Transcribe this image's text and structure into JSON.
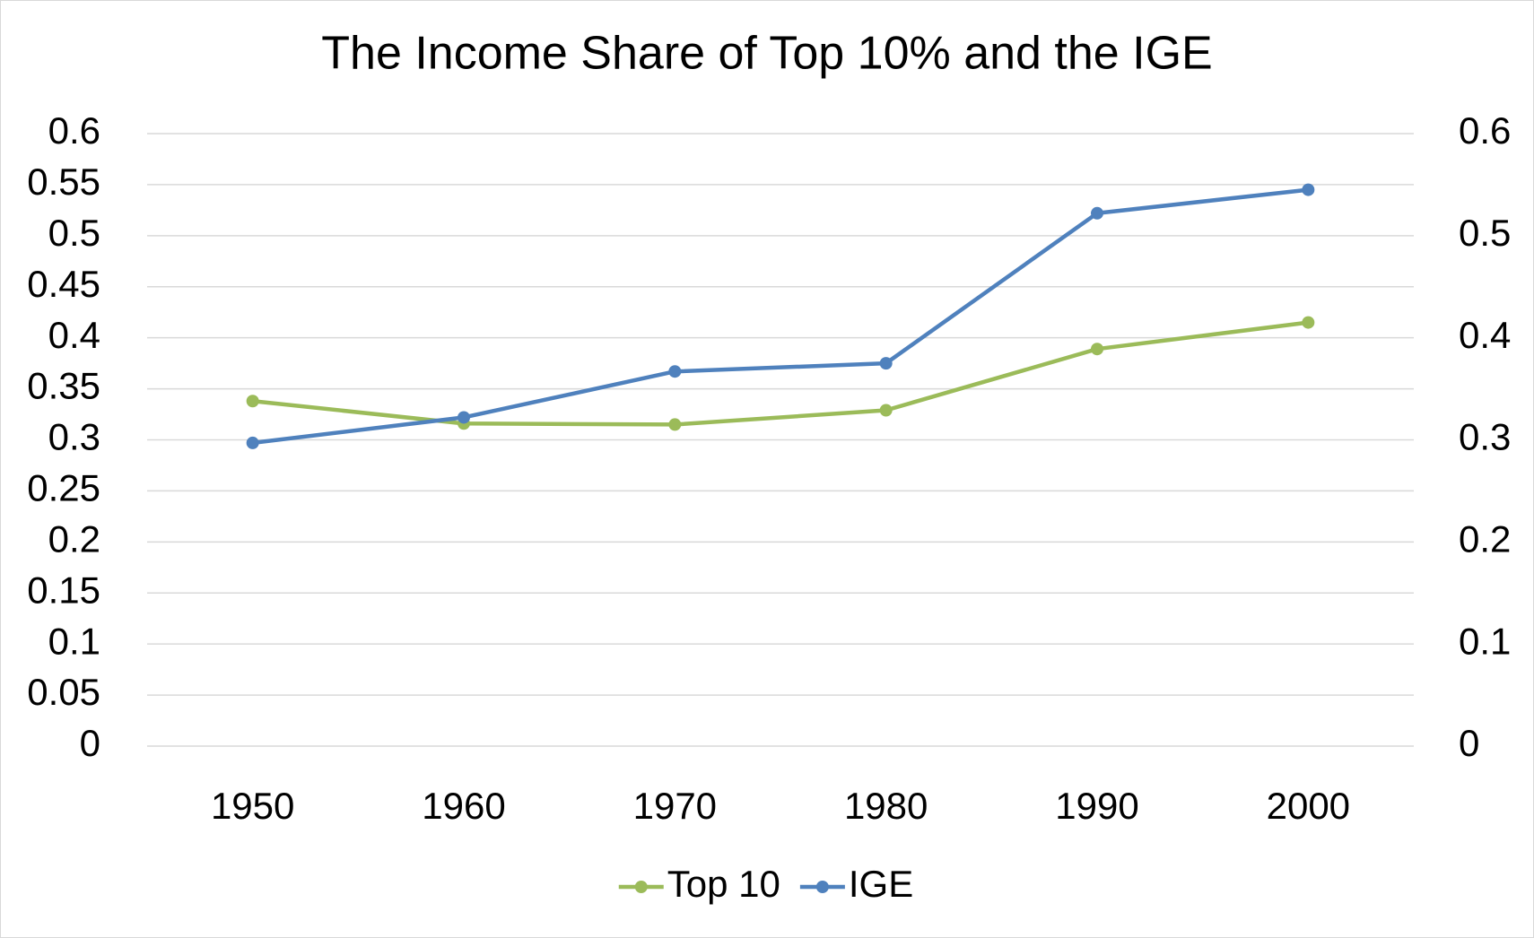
{
  "chart_data": {
    "type": "line",
    "title": "The Income Share of Top 10% and the IGE",
    "categories": [
      "1950",
      "1960",
      "1970",
      "1980",
      "1990",
      "2000"
    ],
    "series": [
      {
        "name": "Top 10",
        "color": "#9bbb59",
        "axis": "y2",
        "values": [
          0.338,
          0.316,
          0.315,
          0.329,
          0.389,
          0.415
        ]
      },
      {
        "name": "IGE",
        "color": "#4f81bd",
        "values": [
          0.297,
          0.322,
          0.367,
          0.375,
          0.522,
          0.545
        ]
      }
    ],
    "ylim": [
      0,
      0.6
    ],
    "yticks": [
      0,
      0.05,
      0.1,
      0.15,
      0.2,
      0.25,
      0.3,
      0.35,
      0.4,
      0.45,
      0.5,
      0.55,
      0.6
    ],
    "y2lim": [
      0,
      0.6
    ],
    "y2ticks": [
      0,
      0.1,
      0.2,
      0.3,
      0.4,
      0.5,
      0.6
    ],
    "grid": true,
    "legend": "bottom"
  }
}
